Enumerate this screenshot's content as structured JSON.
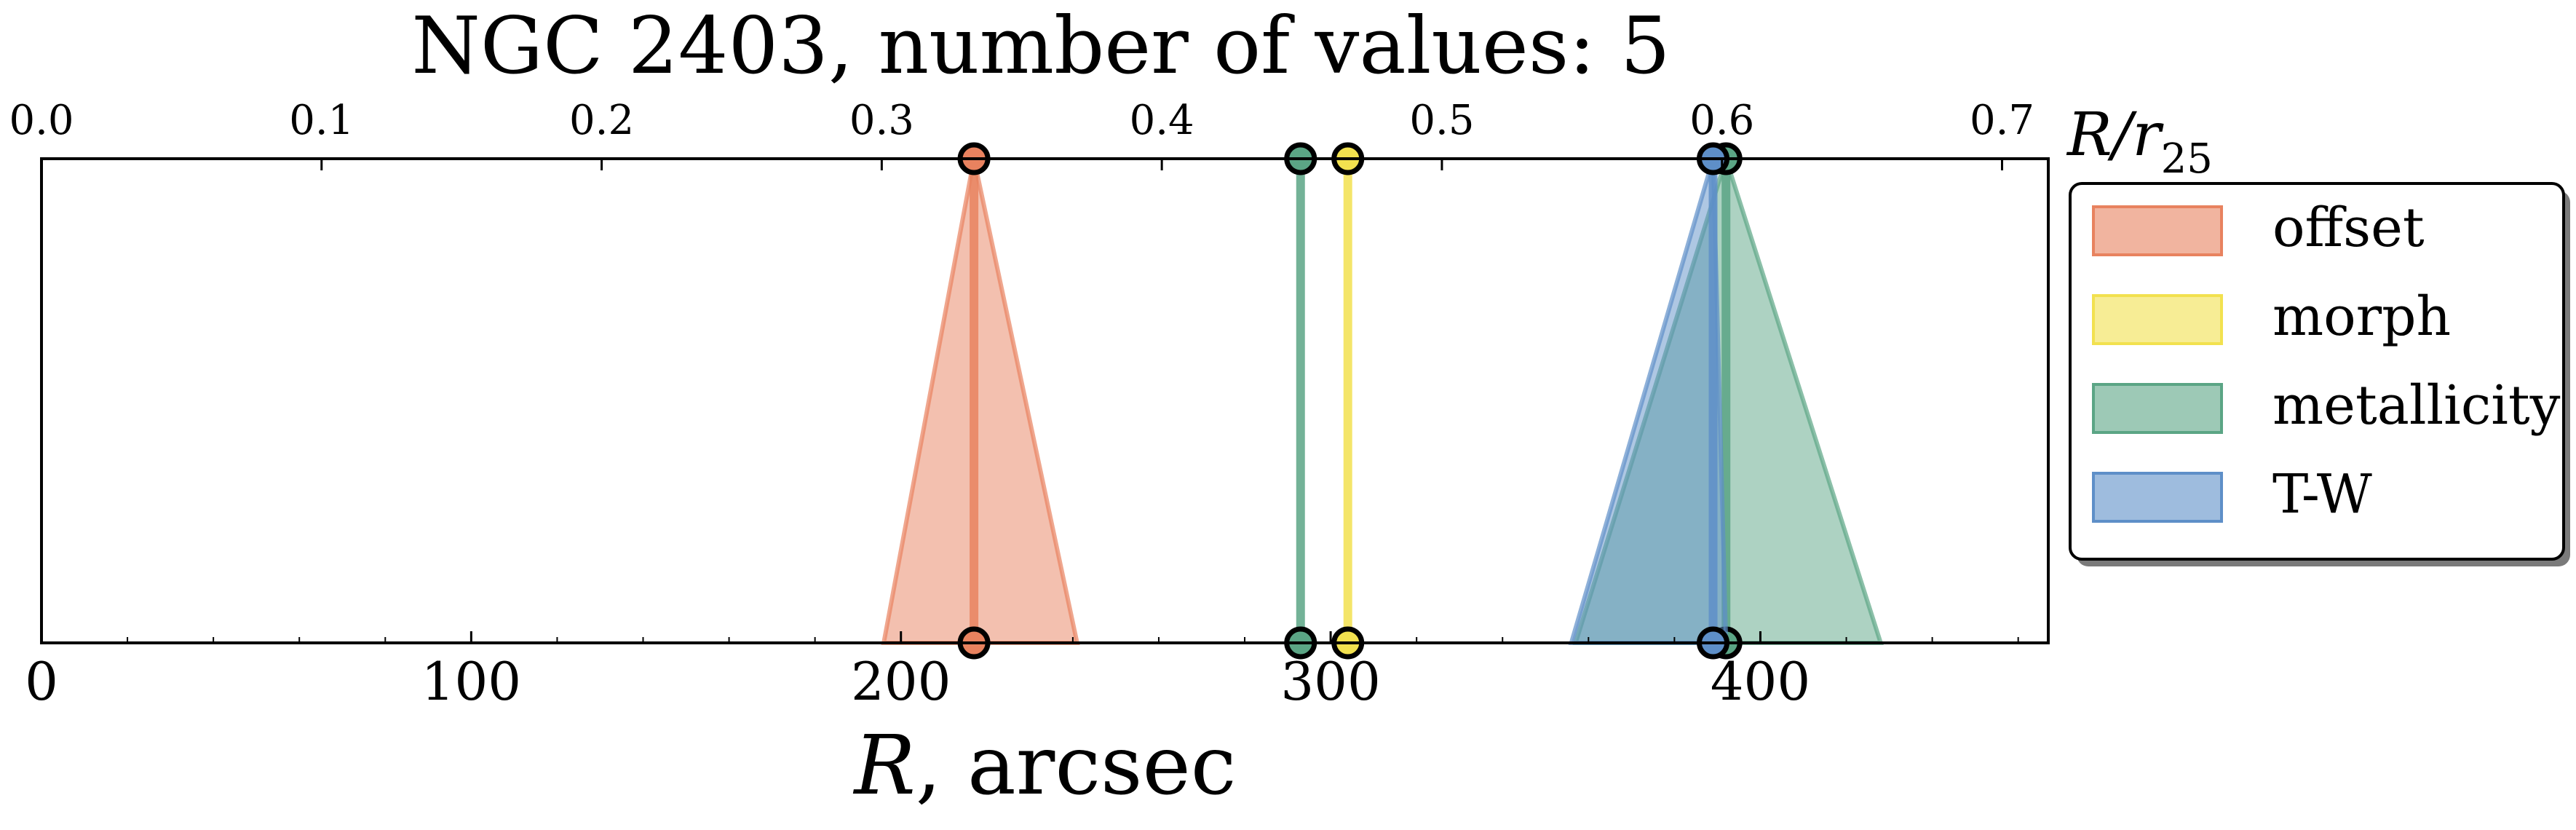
{
  "chart_data": {
    "type": "scatter",
    "title": "NGC 2403, number of values: 5",
    "xlabel": "R, arcsec",
    "xlabel_var": "R",
    "xlabel_rest": ", arcsec",
    "top_axis_label": "R/r",
    "top_axis_label_sub": "25",
    "xlim": [
      0,
      467
    ],
    "x_ticks": [
      0,
      100,
      200,
      300,
      400
    ],
    "x_tick_labels": [
      "0",
      "100",
      "200",
      "300",
      "400"
    ],
    "top_xlim": [
      0,
      0.7165
    ],
    "top_ticks": [
      0.0,
      0.1,
      0.2,
      0.3,
      0.4,
      0.5,
      0.6,
      0.7
    ],
    "top_tick_labels": [
      "0.0",
      "0.1",
      "0.2",
      "0.3",
      "0.4",
      "0.5",
      "0.6",
      "0.7"
    ],
    "grid": false,
    "legend_position": "right",
    "series": [
      {
        "name": "offset",
        "color": "#e8825f",
        "x": 217,
        "x_err_lower": 196,
        "x_err_upper": 241
      },
      {
        "name": "morph",
        "color": "#f2e14f",
        "x": 304,
        "x_err_lower": 304,
        "x_err_upper": 304
      },
      {
        "name": "metallicity",
        "color": "#5ba585",
        "x": 293,
        "x_err_lower": 293,
        "x_err_upper": 293
      },
      {
        "name": "metallicity",
        "color": "#5ba585",
        "x": 392,
        "x_err_lower": 357,
        "x_err_upper": 428
      },
      {
        "name": "T-W",
        "color": "#5e8fc8",
        "x": 389,
        "x_err_lower": 356,
        "x_err_upper": 392
      }
    ],
    "legend": [
      {
        "label": "offset",
        "color": "#e8825f"
      },
      {
        "label": "morph",
        "color": "#f2e14f"
      },
      {
        "label": "metallicity",
        "color": "#5ba585"
      },
      {
        "label": "T-W",
        "color": "#5e8fc8"
      }
    ]
  }
}
